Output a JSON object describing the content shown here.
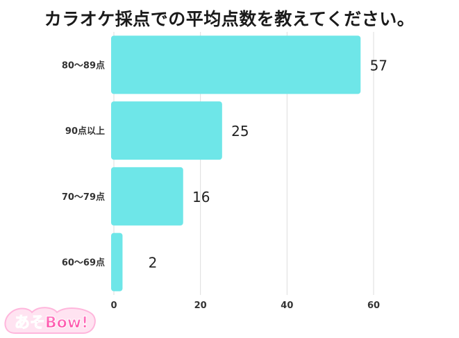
{
  "title": "カラオケ採点での平均点数を教えてください。",
  "logo_text": "あそBow!",
  "chart_data": {
    "type": "bar",
    "orientation": "horizontal",
    "categories": [
      "80〜89点",
      "90点以上",
      "70〜79点",
      "60〜69点"
    ],
    "values": [
      57,
      25,
      16,
      2
    ],
    "xlim": [
      0,
      60
    ],
    "xticks": [
      0,
      20,
      40,
      60
    ],
    "grid": true,
    "bar_color": "#6ee6e8",
    "grid_color": "#dddddd",
    "title": "カラオケ採点での平均点数を教えてください。",
    "xlabel": "",
    "ylabel": ""
  }
}
